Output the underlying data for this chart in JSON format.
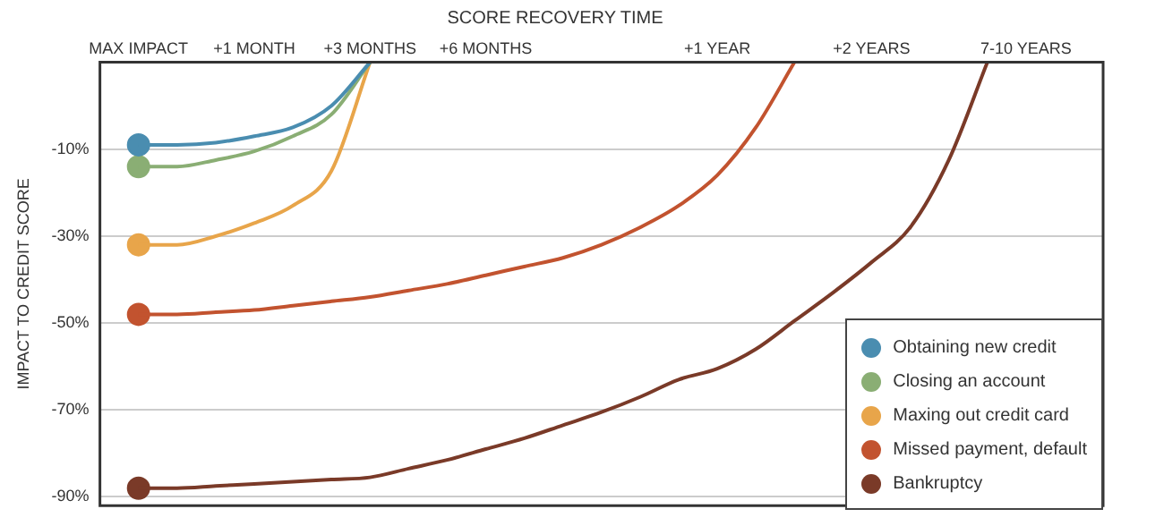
{
  "chart_data": {
    "type": "line",
    "title": "SCORE RECOVERY TIME",
    "ylabel": "IMPACT TO CREDIT SCORE",
    "categories": [
      null,
      "MAX IMPACT",
      null,
      null,
      "+1 MONTH",
      null,
      null,
      "+3 MONTHS",
      null,
      null,
      "+6 MONTHS",
      null,
      null,
      null,
      null,
      null,
      "+1 YEAR",
      null,
      null,
      null,
      "+2 YEARS",
      null,
      null,
      null,
      "7-10 YEARS",
      null,
      null
    ],
    "ylim": [
      -92,
      10
    ],
    "yticks": [
      {
        "value": -10,
        "label": "-10%"
      },
      {
        "value": -30,
        "label": "-30%"
      },
      {
        "value": -50,
        "label": "-50%"
      },
      {
        "value": -70,
        "label": "-70%"
      },
      {
        "value": -90,
        "label": "-90%"
      }
    ],
    "grid": "y",
    "legend": "bottom right",
    "line_style": "solid",
    "series": [
      {
        "name": "Obtaining new credit",
        "color": "#4a8db0",
        "marker": "none",
        "values": [
          null,
          -9,
          -9,
          -8.5,
          -7,
          -5,
          0,
          10,
          null,
          null,
          null,
          null,
          null,
          null,
          null,
          null,
          null,
          null,
          null,
          null,
          null,
          null,
          null,
          null,
          null,
          null,
          null
        ]
      },
      {
        "name": "Closing an account",
        "color": "#8aae74",
        "marker": "none",
        "values": [
          null,
          -14,
          -14,
          -12.5,
          -10.5,
          -7,
          -2,
          10,
          null,
          null,
          null,
          null,
          null,
          null,
          null,
          null,
          null,
          null,
          null,
          null,
          null,
          null,
          null,
          null,
          null,
          null,
          null
        ]
      },
      {
        "name": "Maxing out credit card",
        "color": "#e8a54a",
        "marker": "none",
        "values": [
          null,
          -32,
          -32,
          -30,
          -27,
          -23,
          -15,
          10,
          null,
          null,
          null,
          null,
          null,
          null,
          null,
          null,
          null,
          null,
          null,
          null,
          null,
          null,
          null,
          null,
          null,
          null,
          null
        ]
      },
      {
        "name": "Missed payment, default",
        "color": "#c2532f",
        "marker": "none",
        "values": [
          null,
          -48,
          -48,
          -47.5,
          -47,
          -46,
          -45,
          -44,
          -42.5,
          -41,
          -39,
          -37,
          -35,
          -32,
          -28,
          -23,
          -16,
          -5,
          10,
          null,
          null,
          null,
          null,
          null,
          null,
          null,
          null
        ]
      },
      {
        "name": "Bankruptcy",
        "color": "#7a3a28",
        "marker": "none",
        "values": [
          null,
          -88,
          -88,
          -87.5,
          -87,
          -86.5,
          -86,
          -85.5,
          -83.5,
          -81.5,
          -79,
          -76.5,
          -73.5,
          -70.5,
          -67,
          -63,
          -60.5,
          -56,
          -49.5,
          -43,
          -36,
          -28,
          -12.5,
          10,
          null,
          null,
          null
        ]
      },
      {
        "type": "scatter",
        "color": "#4a8db0",
        "marker": "circle",
        "x": [
          "MAX IMPACT"
        ],
        "values": [
          -9
        ]
      },
      {
        "type": "scatter",
        "color": "#8aae74",
        "marker": "circle",
        "x": [
          "MAX IMPACT"
        ],
        "values": [
          -14
        ]
      },
      {
        "type": "scatter",
        "color": "#e8a54a",
        "marker": "circle",
        "x": [
          "MAX IMPACT"
        ],
        "values": [
          -32
        ]
      },
      {
        "type": "scatter",
        "color": "#c2532f",
        "marker": "circle",
        "x": [
          "MAX IMPACT"
        ],
        "values": [
          -48
        ]
      },
      {
        "type": "scatter",
        "color": "#7a3a28",
        "marker": "circle",
        "x": [
          "MAX IMPACT"
        ],
        "values": [
          -88
        ]
      }
    ]
  }
}
